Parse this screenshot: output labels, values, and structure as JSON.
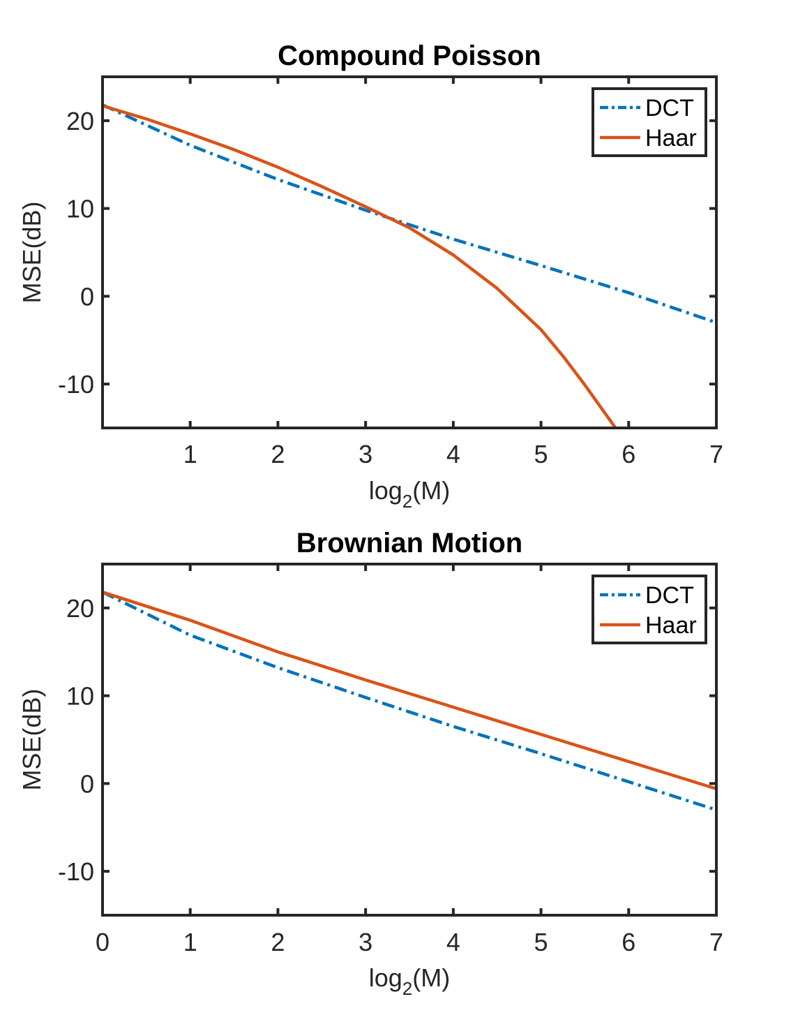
{
  "chart_data": [
    {
      "type": "line",
      "title": "Compound Poisson",
      "xlabel": "log",
      "xlabel_subscript": "2",
      "xlabel_suffix": "(M)",
      "ylabel": "MSE(dB)",
      "xlim": [
        0,
        7
      ],
      "ylim": [
        -15,
        25
      ],
      "xticks": [
        1,
        2,
        3,
        4,
        5,
        6,
        7
      ],
      "xtick_labels": [
        "1",
        "2",
        "3",
        "4",
        "5",
        "6",
        "7"
      ],
      "yticks": [
        20,
        10,
        0,
        -10
      ],
      "ytick_labels": [
        "20",
        "10",
        "0",
        "-10"
      ],
      "legend_position": "top-right",
      "series": [
        {
          "name": "DCT",
          "style": "dash-dot",
          "color": "#0072BD",
          "x": [
            0,
            1,
            2,
            3,
            4,
            5,
            6,
            7
          ],
          "y": [
            21.8,
            17.2,
            13.3,
            9.8,
            6.5,
            3.5,
            0.4,
            -3
          ]
        },
        {
          "name": "Haar",
          "style": "solid",
          "color": "#D95319",
          "x": [
            0,
            0.5,
            1,
            1.5,
            2,
            2.5,
            3,
            3.5,
            4,
            4.5,
            5,
            5.25,
            5.5,
            5.75,
            5.85
          ],
          "y": [
            21.7,
            20.2,
            18.5,
            16.7,
            14.7,
            12.5,
            10.2,
            7.8,
            4.7,
            0.9,
            -3.8,
            -6.8,
            -10.1,
            -13.6,
            -15
          ]
        }
      ]
    },
    {
      "type": "line",
      "title": "Brownian Motion",
      "xlabel": "log",
      "xlabel_subscript": "2",
      "xlabel_suffix": "(M)",
      "ylabel": "MSE(dB)",
      "xlim": [
        0,
        7
      ],
      "ylim": [
        -15,
        25
      ],
      "xticks": [
        0,
        1,
        2,
        3,
        4,
        5,
        6,
        7
      ],
      "xtick_labels": [
        "0",
        "1",
        "2",
        "3",
        "4",
        "5",
        "6",
        "7"
      ],
      "yticks": [
        20,
        10,
        0,
        -10
      ],
      "ytick_labels": [
        "20",
        "10",
        "0",
        "-10"
      ],
      "legend_position": "top-right",
      "series": [
        {
          "name": "DCT",
          "style": "dash-dot",
          "color": "#0072BD",
          "x": [
            0,
            1,
            2,
            3,
            4,
            5,
            6,
            7
          ],
          "y": [
            21.8,
            16.9,
            13.2,
            9.8,
            6.5,
            3.4,
            0.2,
            -3
          ]
        },
        {
          "name": "Haar",
          "style": "solid",
          "color": "#D95319",
          "x": [
            0,
            1,
            2,
            3,
            4,
            5,
            6,
            7
          ],
          "y": [
            21.8,
            18.6,
            15,
            11.8,
            8.7,
            5.6,
            2.5,
            -0.6
          ]
        }
      ]
    }
  ]
}
